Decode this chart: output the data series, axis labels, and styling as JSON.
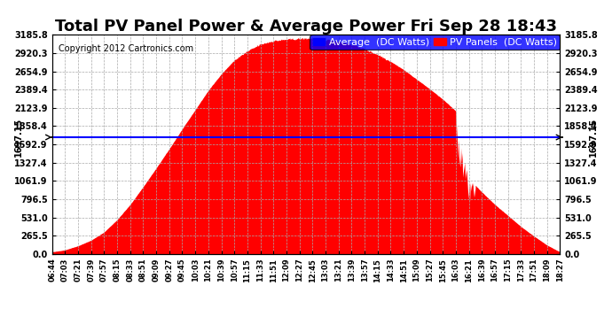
{
  "title": "Total PV Panel Power & Average Power Fri Sep 28 18:43",
  "copyright": "Copyright 2012 Cartronics.com",
  "legend_avg": "Average  (DC Watts)",
  "legend_pv": "PV Panels  (DC Watts)",
  "avg_value": 1697.15,
  "ymin": 0.0,
  "ymax": 3185.8,
  "yticks": [
    0.0,
    265.5,
    531.0,
    796.5,
    1061.9,
    1327.4,
    1592.9,
    1858.4,
    2123.9,
    2389.4,
    2654.9,
    2920.3,
    3185.8
  ],
  "xtick_labels": [
    "06:44",
    "07:03",
    "07:21",
    "07:39",
    "07:57",
    "08:15",
    "08:33",
    "08:51",
    "09:09",
    "09:27",
    "09:45",
    "10:03",
    "10:21",
    "10:39",
    "10:57",
    "11:15",
    "11:33",
    "11:51",
    "12:09",
    "12:27",
    "12:45",
    "13:03",
    "13:21",
    "13:39",
    "13:57",
    "14:15",
    "14:33",
    "14:51",
    "15:09",
    "15:27",
    "15:45",
    "16:03",
    "16:21",
    "16:39",
    "16:57",
    "17:15",
    "17:33",
    "17:51",
    "18:09",
    "18:27"
  ],
  "pv_color": "#FF0000",
  "avg_color": "#0000FF",
  "bg_color": "#FFFFFF",
  "plot_bg_color": "#FFFFFF",
  "grid_color": "#AAAAAA",
  "title_fontsize": 13,
  "copyright_fontsize": 7,
  "legend_fontsize": 8,
  "tick_fontsize": 7
}
